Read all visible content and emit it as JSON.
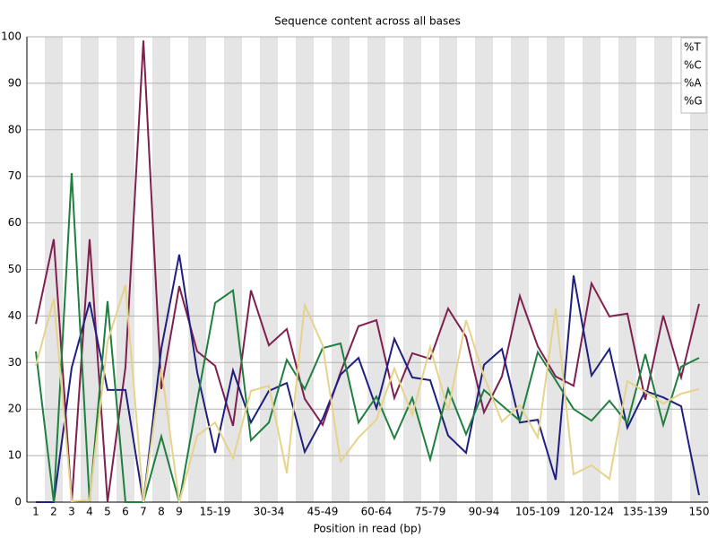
{
  "chart_data": {
    "type": "line",
    "title": "Sequence content across all bases",
    "x_label": "Position in read (bp)",
    "categories": [
      "1",
      "2",
      "3",
      "4",
      "5",
      "6",
      "7",
      "8",
      "9",
      null,
      "15-19",
      null,
      null,
      "30-34",
      null,
      null,
      "45-49",
      null,
      null,
      "60-64",
      null,
      null,
      "75-79",
      null,
      null,
      "90-94",
      null,
      null,
      "105-109",
      null,
      null,
      "120-124",
      null,
      null,
      "135-139",
      null,
      null,
      "150"
    ],
    "ylim": [
      0,
      100
    ],
    "yticks": [
      0,
      10,
      20,
      30,
      40,
      50,
      60,
      70,
      80,
      90,
      100
    ],
    "grid": true,
    "legend": "top-right",
    "series": [
      {
        "name": "%T",
        "color": "#7f1f4f",
        "values": [
          38.3,
          56.5,
          0,
          56.5,
          0,
          29,
          99.2,
          24.3,
          46.4,
          32.4,
          29.3,
          16.4,
          45.5,
          33.7,
          37.2,
          22.2,
          16.6,
          27.9,
          37.8,
          39.1,
          22.4,
          32,
          30.8,
          41.6,
          35.5,
          19.3,
          27,
          44.3,
          33.5,
          27,
          25,
          47,
          39.9,
          40.5,
          22,
          40.1,
          26.8,
          42.6
        ]
      },
      {
        "name": "%C",
        "color": "#1f1f7f",
        "values": [
          0,
          0,
          28.9,
          43,
          24.1,
          24.1,
          0,
          33,
          53.2,
          27.9,
          10.6,
          28.3,
          17.1,
          23.9,
          25.6,
          10.8,
          17.9,
          27.4,
          31,
          20.2,
          35.1,
          26.8,
          26.2,
          14.3,
          10.6,
          29.5,
          32.9,
          17.1,
          17.7,
          4.8,
          48.7,
          27.2,
          32.9,
          16,
          23.9,
          22.5,
          20.6,
          1.5
        ]
      },
      {
        "name": "%A",
        "color": "#1f7f3f",
        "values": [
          32.4,
          0,
          70.7,
          0,
          43.2,
          0,
          0,
          14.1,
          0,
          21.8,
          42.8,
          45.5,
          13.3,
          17.1,
          30.6,
          24.3,
          33.1,
          34.1,
          17.1,
          22.7,
          13.7,
          22.4,
          9.2,
          24.3,
          14.6,
          24.1,
          20.8,
          17.5,
          32.2,
          26.2,
          20,
          17.5,
          21.8,
          17,
          31.8,
          16.6,
          29.1,
          31
        ]
      },
      {
        "name": "%G",
        "color": "#e6d38a",
        "values": [
          29.3,
          43.7,
          0.2,
          0.4,
          34.5,
          46.6,
          0,
          28.7,
          0,
          14.3,
          17.1,
          9.4,
          23.9,
          25,
          6.2,
          42.4,
          33.7,
          8.7,
          13.9,
          17.7,
          28.7,
          18.7,
          33.3,
          19.7,
          39.1,
          27,
          17.3,
          20.8,
          13.9,
          41.6,
          6,
          7.9,
          5,
          26,
          23.7,
          21.2,
          23.3,
          24.3
        ]
      }
    ]
  }
}
